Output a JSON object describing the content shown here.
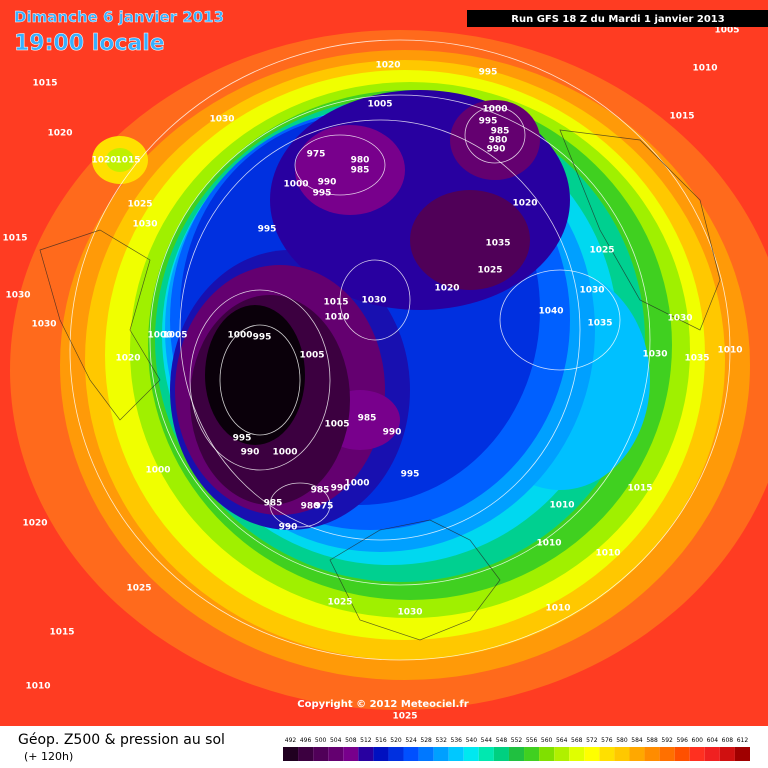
{
  "header": {
    "date": "Dimanche 6 janvier 2013",
    "time": "19:00 locale",
    "run": "Run GFS 18 Z du Mardi 1 janvier 2013"
  },
  "footer": {
    "title": "Géop. Z500 & pression au sol",
    "lead": "(+ 120h)",
    "copyright": "Copyright © 2012 Meteociel.fr"
  },
  "pressure_labels": [
    1005,
    1020,
    995,
    1010,
    1015,
    1030,
    1005,
    1000,
    995,
    985,
    980,
    990,
    1015,
    1020,
    975,
    980,
    985,
    990,
    1000,
    995,
    1020,
    1015,
    1025,
    1030,
    1020,
    995,
    1015,
    1035,
    1025,
    1025,
    1020,
    1030,
    1030,
    1015,
    1030,
    1040,
    1010,
    1035,
    1030,
    1030,
    1000,
    1005,
    1000,
    995,
    1010,
    1005,
    1030,
    1035,
    1020,
    985,
    1005,
    990,
    995,
    990,
    1000,
    995,
    1000,
    1000,
    985,
    990,
    1015,
    985,
    980,
    975,
    1010,
    990,
    1020,
    1010,
    1010,
    1025,
    1025,
    1030,
    1010,
    1015,
    1010,
    1025
  ],
  "scale": {
    "values": [
      492,
      496,
      500,
      504,
      508,
      512,
      516,
      520,
      524,
      528,
      532,
      536,
      540,
      544,
      548,
      552,
      556,
      560,
      564,
      568,
      572,
      576,
      580,
      584,
      588,
      592,
      596,
      600,
      604,
      608,
      612
    ],
    "colors": [
      "#200020",
      "#3c0040",
      "#500058",
      "#640070",
      "#78008c",
      "#2800a0",
      "#0010c0",
      "#0030e0",
      "#0050ff",
      "#0078ff",
      "#00a0ff",
      "#00c8ff",
      "#00e8f0",
      "#00e8b0",
      "#00d080",
      "#20c040",
      "#40d020",
      "#80e000",
      "#b0f000",
      "#e0ff00",
      "#ffff00",
      "#ffe000",
      "#ffc800",
      "#ffa800",
      "#ff8c00",
      "#ff7000",
      "#ff5000",
      "#ff3020",
      "#f02020",
      "#d01010",
      "#a00000"
    ]
  }
}
